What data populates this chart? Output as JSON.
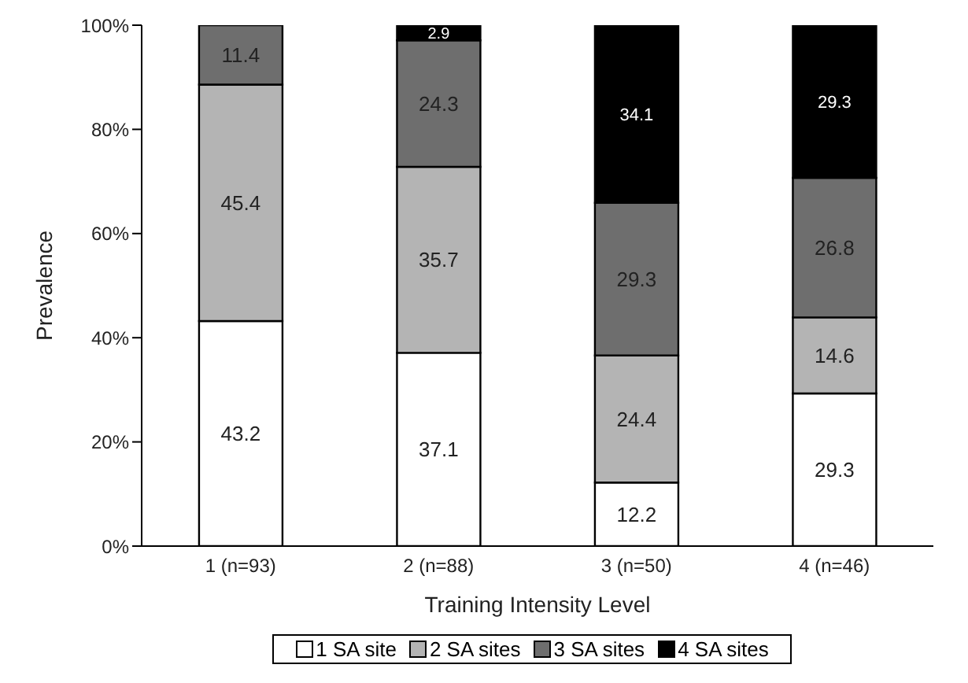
{
  "chart_data": {
    "type": "bar",
    "stacked": true,
    "xlabel": "Training Intensity Level",
    "ylabel": "Prevalence",
    "categories": [
      "1 (n=93)",
      "2 (n=88)",
      "3 (n=50)",
      "4 (n=46)"
    ],
    "series": [
      {
        "name": "1 SA site",
        "color": "#ffffff",
        "values": [
          43.2,
          37.1,
          12.2,
          29.3
        ]
      },
      {
        "name": "2 SA sites",
        "color": "#b4b4b4",
        "values": [
          45.4,
          35.7,
          24.4,
          14.6
        ]
      },
      {
        "name": "3 SA sites",
        "color": "#6e6e6e",
        "values": [
          11.4,
          24.3,
          29.3,
          26.8
        ]
      },
      {
        "name": "4 SA sites",
        "color": "#000000",
        "values": [
          null,
          2.9,
          34.1,
          29.3
        ]
      }
    ],
    "ylim": [
      0,
      100
    ],
    "yticks": [
      {
        "value": 0,
        "label": "0%"
      },
      {
        "value": 20,
        "label": "20%"
      },
      {
        "value": 40,
        "label": "40%"
      },
      {
        "value": 60,
        "label": "60%"
      },
      {
        "value": 80,
        "label": "80%"
      },
      {
        "value": 100,
        "label": "100%"
      }
    ],
    "data_labels": true,
    "grid": false,
    "legend": "bottom"
  }
}
